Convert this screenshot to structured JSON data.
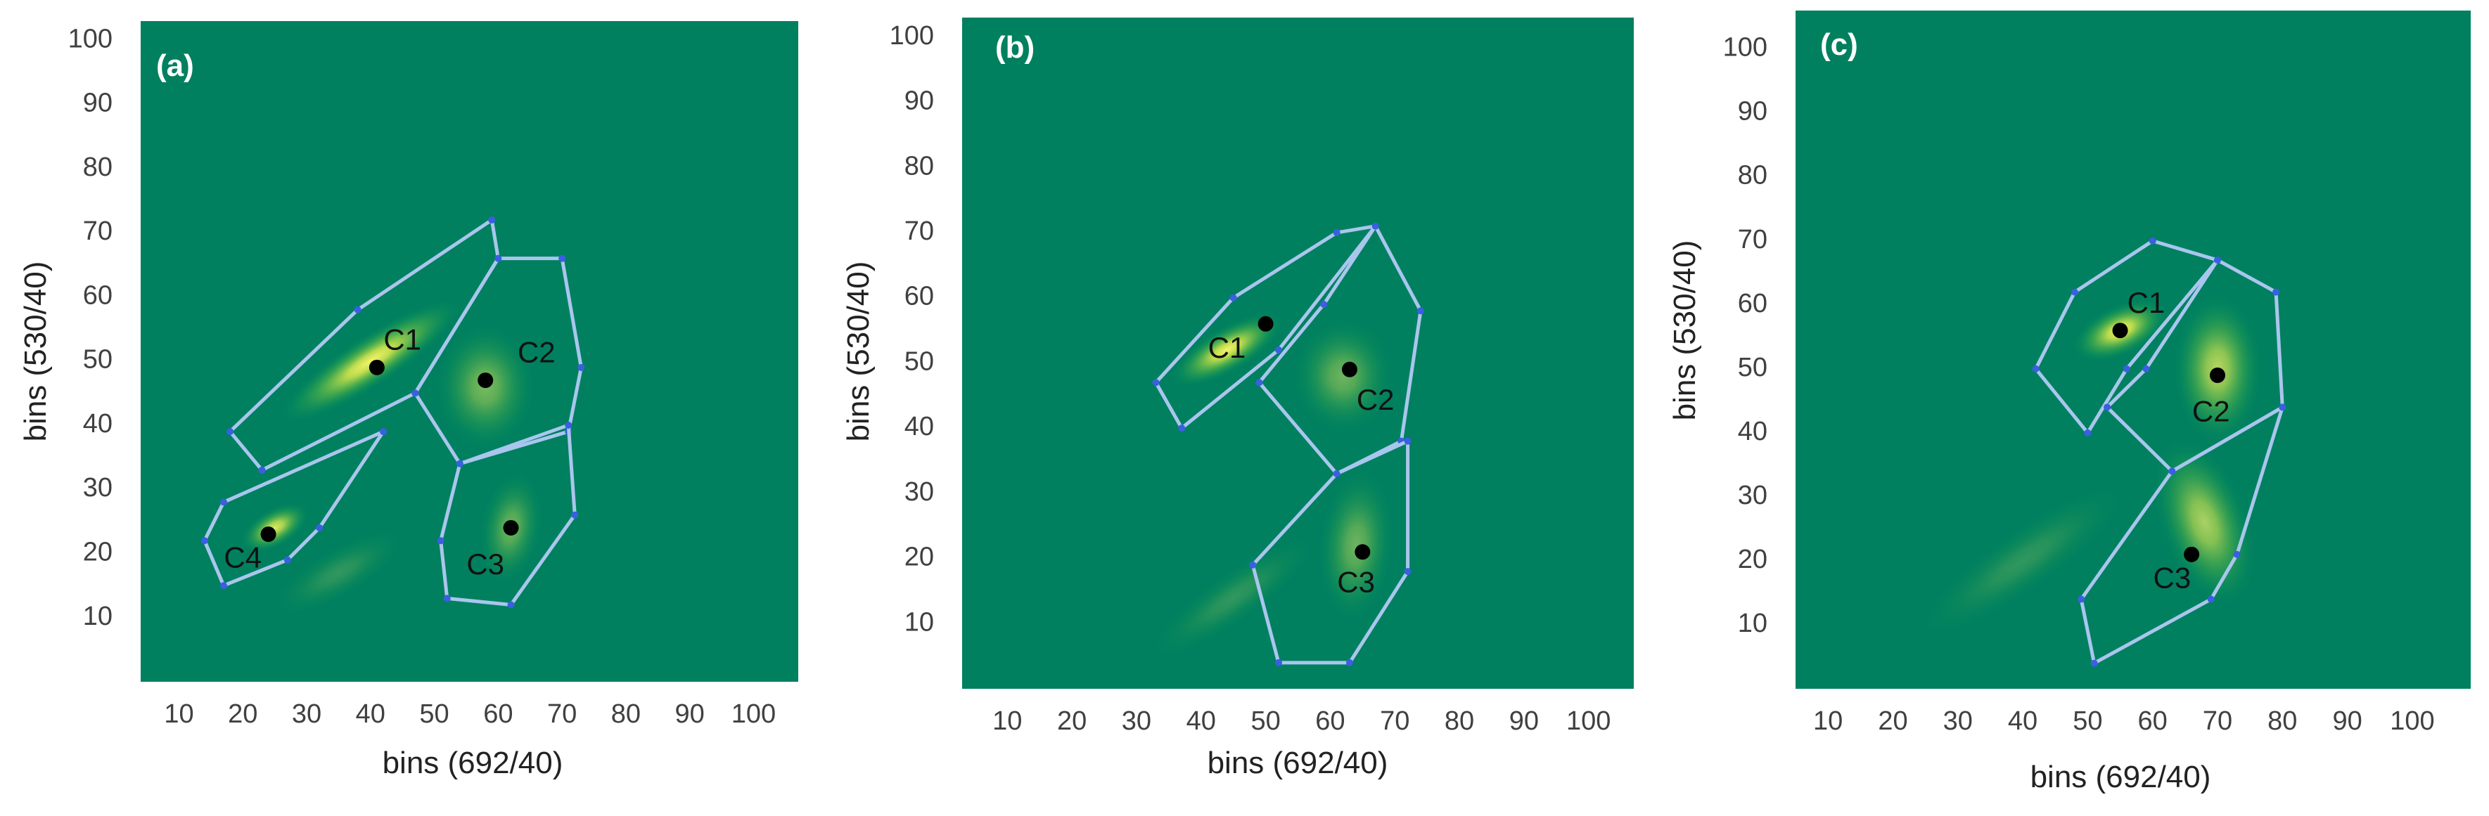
{
  "colors": {
    "background": "#00805f",
    "density_low": "#1f9a4e",
    "density_mid": "#8cc83a",
    "density_high": "#f0f060",
    "gate_line": "#a9c6ee",
    "gate_vertex": "#3a5fe0",
    "centroid": "#000000",
    "panel_label": "#ffffff"
  },
  "chart_data": [
    {
      "type": "scatter",
      "panel": "(a)",
      "xlabel": "bins (692/40)",
      "ylabel": "bins (530/40)",
      "xlim": [
        4,
        107
      ],
      "ylim": [
        0,
        103
      ],
      "xticks": [
        10,
        20,
        30,
        40,
        50,
        60,
        70,
        80,
        90,
        100
      ],
      "yticks": [
        10,
        20,
        30,
        40,
        50,
        60,
        70,
        80,
        90,
        100
      ],
      "density": [
        {
          "x": 40,
          "y": 50,
          "rx": 17,
          "ry": 4,
          "angle": 33,
          "weight": 1.0
        },
        {
          "x": 25,
          "y": 24,
          "rx": 6,
          "ry": 3,
          "angle": 30,
          "weight": 0.9
        },
        {
          "x": 58,
          "y": 46,
          "rx": 8,
          "ry": 10,
          "angle": 0,
          "weight": 0.5
        },
        {
          "x": 62,
          "y": 24,
          "rx": 5,
          "ry": 9,
          "angle": -10,
          "weight": 0.45
        },
        {
          "x": 35,
          "y": 17,
          "rx": 12,
          "ry": 4,
          "angle": 30,
          "weight": 0.2
        }
      ],
      "clusters": [
        {
          "name": "C1",
          "centroid": [
            41,
            49
          ],
          "label_pos": [
            45,
            53
          ],
          "gate": [
            [
              18,
              39
            ],
            [
              23,
              33
            ],
            [
              47,
              45
            ],
            [
              60,
              66
            ],
            [
              59,
              72
            ],
            [
              38,
              58
            ]
          ]
        },
        {
          "name": "C2",
          "centroid": [
            58,
            47
          ],
          "label_pos": [
            66,
            51
          ],
          "gate": [
            [
              60,
              66
            ],
            [
              70,
              66
            ],
            [
              73,
              49
            ],
            [
              71,
              39
            ],
            [
              54,
              34
            ],
            [
              47,
              45
            ]
          ]
        },
        {
          "name": "C3",
          "centroid": [
            62,
            24
          ],
          "label_pos": [
            58,
            18
          ],
          "gate": [
            [
              54,
              34
            ],
            [
              71,
              40
            ],
            [
              72,
              26
            ],
            [
              62,
              12
            ],
            [
              52,
              13
            ],
            [
              51,
              22
            ]
          ]
        },
        {
          "name": "C4",
          "centroid": [
            24,
            23
          ],
          "label_pos": [
            20,
            19
          ],
          "gate": [
            [
              17,
              28
            ],
            [
              42,
              39
            ],
            [
              32,
              24
            ],
            [
              27,
              19
            ],
            [
              17,
              15
            ],
            [
              14,
              22
            ]
          ]
        }
      ]
    },
    {
      "type": "scatter",
      "panel": "(b)",
      "xlabel": "bins (692/40)",
      "ylabel": "bins (530/40)",
      "xlim": [
        3,
        107
      ],
      "ylim": [
        0,
        103
      ],
      "xticks": [
        10,
        20,
        30,
        40,
        50,
        60,
        70,
        80,
        90,
        100
      ],
      "yticks": [
        10,
        20,
        30,
        40,
        50,
        60,
        70,
        80,
        90,
        100
      ],
      "density": [
        {
          "x": 44,
          "y": 52,
          "rx": 10,
          "ry": 3.5,
          "angle": 30,
          "weight": 1.0
        },
        {
          "x": 62,
          "y": 48,
          "rx": 8,
          "ry": 9,
          "angle": 0,
          "weight": 0.45
        },
        {
          "x": 64,
          "y": 22,
          "rx": 6,
          "ry": 12,
          "angle": -5,
          "weight": 0.45
        },
        {
          "x": 45,
          "y": 14,
          "rx": 16,
          "ry": 4,
          "angle": 35,
          "weight": 0.2
        }
      ],
      "clusters": [
        {
          "name": "C1",
          "centroid": [
            50,
            56
          ],
          "label_pos": [
            44,
            52
          ],
          "gate": [
            [
              33,
              47
            ],
            [
              37,
              40
            ],
            [
              52,
              52
            ],
            [
              67,
              71
            ],
            [
              61,
              70
            ],
            [
              45,
              60
            ]
          ]
        },
        {
          "name": "C2",
          "centroid": [
            63,
            49
          ],
          "label_pos": [
            67,
            44
          ],
          "gate": [
            [
              67,
              71
            ],
            [
              74,
              58
            ],
            [
              71,
              38
            ],
            [
              61,
              33
            ],
            [
              49,
              47
            ],
            [
              59,
              59
            ]
          ]
        },
        {
          "name": "C3",
          "centroid": [
            65,
            21
          ],
          "label_pos": [
            64,
            16
          ],
          "gate": [
            [
              61,
              33
            ],
            [
              72,
              38
            ],
            [
              72,
              18
            ],
            [
              63,
              4
            ],
            [
              52,
              4
            ],
            [
              48,
              19
            ]
          ]
        }
      ]
    },
    {
      "type": "scatter",
      "panel": "(c)",
      "xlabel": "bins (692/40)",
      "ylabel": "bins (530/40)",
      "xlim": [
        5,
        109
      ],
      "ylim": [
        0,
        106
      ],
      "xticks": [
        10,
        20,
        30,
        40,
        50,
        60,
        70,
        80,
        90,
        100
      ],
      "yticks": [
        10,
        20,
        30,
        40,
        50,
        60,
        70,
        80,
        90,
        100
      ],
      "density": [
        {
          "x": 55,
          "y": 56,
          "rx": 8,
          "ry": 4,
          "angle": 25,
          "weight": 1.0
        },
        {
          "x": 70,
          "y": 50,
          "rx": 7,
          "ry": 12,
          "angle": 0,
          "weight": 0.75
        },
        {
          "x": 68,
          "y": 26,
          "rx": 7,
          "ry": 14,
          "angle": 20,
          "weight": 0.7
        },
        {
          "x": 40,
          "y": 20,
          "rx": 20,
          "ry": 5,
          "angle": 35,
          "weight": 0.2
        }
      ],
      "clusters": [
        {
          "name": "C1",
          "centroid": [
            55,
            56
          ],
          "label_pos": [
            59,
            60
          ],
          "gate": [
            [
              42,
              50
            ],
            [
              50,
              40
            ],
            [
              56,
              50
            ],
            [
              70,
              67
            ],
            [
              60,
              70
            ],
            [
              48,
              62
            ]
          ]
        },
        {
          "name": "C2",
          "centroid": [
            70,
            49
          ],
          "label_pos": [
            69,
            43
          ],
          "gate": [
            [
              70,
              67
            ],
            [
              79,
              62
            ],
            [
              80,
              44
            ],
            [
              63,
              34
            ],
            [
              53,
              44
            ],
            [
              59,
              50
            ]
          ]
        },
        {
          "name": "C3",
          "centroid": [
            66,
            21
          ],
          "label_pos": [
            63,
            17
          ],
          "gate": [
            [
              63,
              34
            ],
            [
              80,
              44
            ],
            [
              73,
              21
            ],
            [
              69,
              14
            ],
            [
              51,
              4
            ],
            [
              49,
              14
            ]
          ]
        }
      ]
    }
  ]
}
